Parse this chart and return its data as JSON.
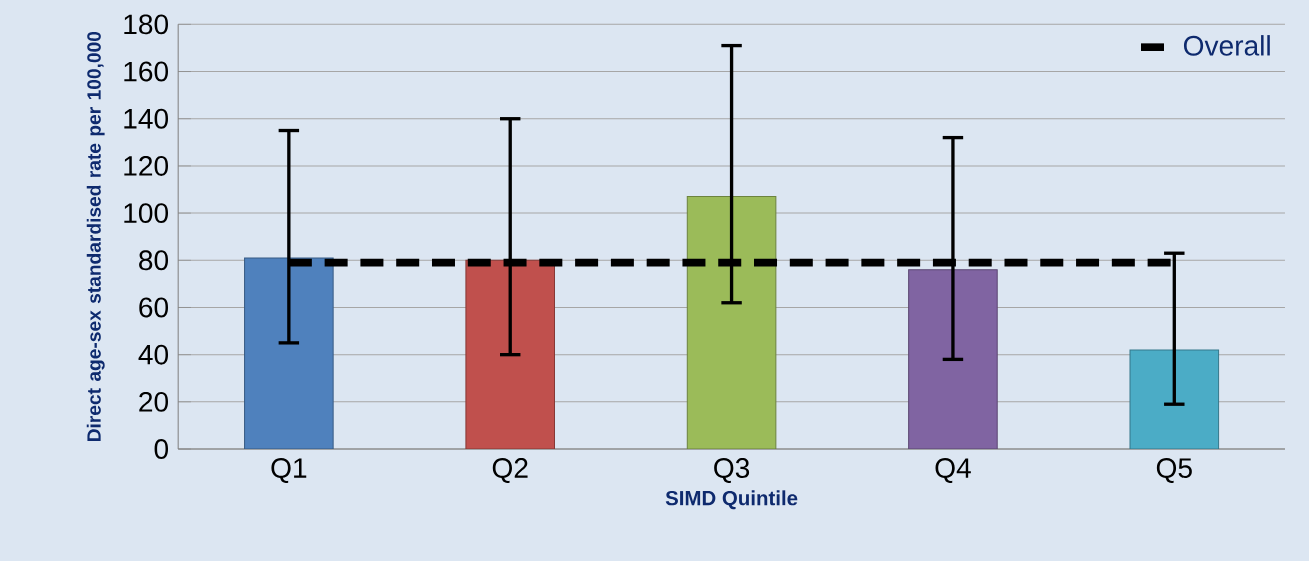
{
  "chart_data": {
    "type": "bar",
    "xlabel": "SIMD Quintile",
    "ylabel": "Direct age-sex  standardised  rate per 100,000",
    "categories": [
      "Q1",
      "Q2",
      "Q3",
      "Q4",
      "Q5"
    ],
    "ylim": [
      0,
      180
    ],
    "yticks": [
      0,
      20,
      40,
      60,
      80,
      100,
      120,
      140,
      160,
      180
    ],
    "grid": "y",
    "legend": "top right",
    "series": [
      {
        "colors": [
          "#4f81bd",
          "#c0504d",
          "#9bbb59",
          "#8064a2",
          "#4bacc6"
        ],
        "values": [
          81,
          80,
          107,
          76,
          42
        ],
        "errors": [
          [
            45,
            135
          ],
          [
            40,
            140
          ],
          [
            62,
            171
          ],
          [
            38,
            132
          ],
          [
            19,
            83
          ]
        ]
      },
      {
        "type": "line",
        "name": "Overall",
        "color": "#000000",
        "values": [
          79,
          79,
          79,
          79,
          79
        ],
        "line_style": "dashed",
        "marker": "none"
      }
    ]
  }
}
